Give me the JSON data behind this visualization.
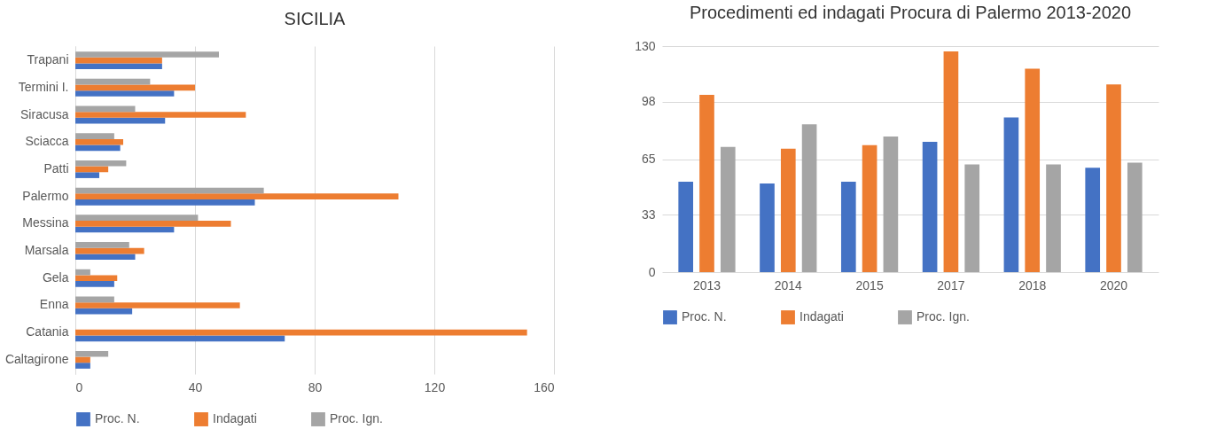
{
  "chart_data": [
    {
      "type": "bar",
      "orientation": "horizontal",
      "title": "SICILIA",
      "categories": [
        "Trapani",
        "Termini I.",
        "Siracusa",
        "Sciacca",
        "Patti",
        "Palermo",
        "Messina",
        "Marsala",
        "Gela",
        "Enna",
        "Catania",
        "Caltagirone"
      ],
      "series": [
        {
          "name": "Proc. N.",
          "color": "#4472c4",
          "values": [
            29,
            33,
            30,
            15,
            8,
            60,
            33,
            20,
            13,
            19,
            70,
            5
          ]
        },
        {
          "name": "Indagati",
          "color": "#ed7d31",
          "values": [
            29,
            40,
            57,
            16,
            11,
            108,
            52,
            23,
            14,
            55,
            151,
            5
          ]
        },
        {
          "name": "Proc. Ign.",
          "color": "#a5a5a5",
          "values": [
            48,
            25,
            20,
            13,
            17,
            63,
            41,
            18,
            5,
            13,
            null,
            11
          ]
        }
      ],
      "xlim": [
        0,
        160
      ],
      "xticks": [
        0,
        40,
        80,
        120,
        160
      ],
      "grid": "x",
      "legend": "bottom"
    },
    {
      "type": "bar",
      "title": "Procedimenti ed indagati Procura di Palermo 2013-2020",
      "categories": [
        "2013",
        "2014",
        "2015",
        "2017",
        "2018",
        "2020"
      ],
      "series": [
        {
          "name": "Proc. N.",
          "color": "#4472c4",
          "values": [
            52,
            51,
            52,
            75,
            89,
            60
          ]
        },
        {
          "name": "Indagati",
          "color": "#ed7d31",
          "values": [
            102,
            71,
            73,
            127,
            117,
            108
          ]
        },
        {
          "name": "Proc. Ign.",
          "color": "#a5a5a5",
          "values": [
            72,
            85,
            78,
            62,
            62,
            63
          ]
        }
      ],
      "ylim": [
        0,
        130
      ],
      "yticks": [
        0,
        33,
        65,
        98,
        130
      ],
      "grid": "y",
      "legend": "bottom"
    }
  ]
}
